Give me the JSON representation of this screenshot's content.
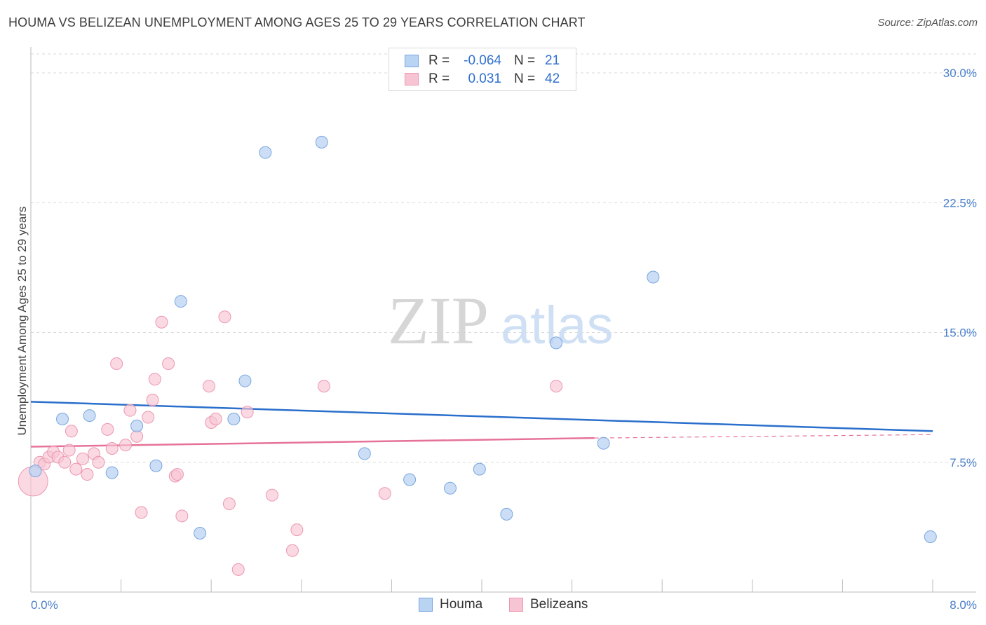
{
  "title": "HOUMA VS BELIZEAN UNEMPLOYMENT AMONG AGES 25 TO 29 YEARS CORRELATION CHART",
  "source": "Source: ZipAtlas.com",
  "watermark": {
    "zip": "ZIP",
    "atlas": "atlas"
  },
  "legend": {
    "houma": {
      "r_label": "R =",
      "r_value": "-0.064",
      "n_label": "N =",
      "n_value": "21"
    },
    "belizeans": {
      "r_label": "R =",
      "r_value": "0.031",
      "n_label": "N =",
      "n_value": "42"
    }
  },
  "bottom_legend": {
    "houma": "Houma",
    "belizeans": "Belizeans"
  },
  "colors": {
    "houma_fill": "#b9d3f3",
    "houma_stroke": "#7aa6df",
    "houma_line": "#2a6fcb",
    "belize_fill": "#f7c4d3",
    "belize_stroke": "#ec97b1",
    "belize_line": "#e6729a",
    "tick_color": "#4a7fcb",
    "grid": "#d9d9d9"
  },
  "chart_data": {
    "type": "scatter",
    "title": "HOUMA VS BELIZEAN UNEMPLOYMENT AMONG AGES 25 TO 29 YEARS CORRELATION CHART",
    "xlabel": "",
    "ylabel": "Unemployment Among Ages 25 to 29 years",
    "xlim": [
      0,
      8.0
    ],
    "ylim": [
      0,
      31.5
    ],
    "x_tick_labels": [
      "0.0%",
      "8.0%"
    ],
    "y_ticks": [
      7.5,
      15.0,
      22.5,
      30.0
    ],
    "y_tick_labels": [
      "7.5%",
      "15.0%",
      "22.5%",
      "30.0%"
    ],
    "series": [
      {
        "name": "Houma",
        "points": [
          [
            0.04,
            7.0
          ],
          [
            0.28,
            10.0
          ],
          [
            0.52,
            10.2
          ],
          [
            0.72,
            6.9
          ],
          [
            0.94,
            9.6
          ],
          [
            1.11,
            7.3
          ],
          [
            1.33,
            16.8
          ],
          [
            1.5,
            3.4
          ],
          [
            1.8,
            10.0
          ],
          [
            1.9,
            12.2
          ],
          [
            2.08,
            25.4
          ],
          [
            2.58,
            26.0
          ],
          [
            2.96,
            8.0
          ],
          [
            3.36,
            6.5
          ],
          [
            3.72,
            6.0
          ],
          [
            3.98,
            7.1
          ],
          [
            4.22,
            4.5
          ],
          [
            4.66,
            14.4
          ],
          [
            5.08,
            8.6
          ],
          [
            5.52,
            18.2
          ],
          [
            7.98,
            3.2
          ]
        ],
        "trend": {
          "x": [
            0,
            8.0
          ],
          "y": [
            11.0,
            9.3
          ]
        }
      },
      {
        "name": "Belizeans",
        "points": [
          [
            0.02,
            6.4
          ],
          [
            0.08,
            7.5
          ],
          [
            0.12,
            7.4
          ],
          [
            0.16,
            7.8
          ],
          [
            0.2,
            8.1
          ],
          [
            0.24,
            7.8
          ],
          [
            0.3,
            7.5
          ],
          [
            0.34,
            8.2
          ],
          [
            0.36,
            9.3
          ],
          [
            0.4,
            7.1
          ],
          [
            0.46,
            7.7
          ],
          [
            0.5,
            6.8
          ],
          [
            0.56,
            8.0
          ],
          [
            0.6,
            7.5
          ],
          [
            0.68,
            9.4
          ],
          [
            0.72,
            8.3
          ],
          [
            0.76,
            13.2
          ],
          [
            0.84,
            8.5
          ],
          [
            0.88,
            10.5
          ],
          [
            0.94,
            9.0
          ],
          [
            0.98,
            4.6
          ],
          [
            1.04,
            10.1
          ],
          [
            1.08,
            11.1
          ],
          [
            1.1,
            12.3
          ],
          [
            1.16,
            15.6
          ],
          [
            1.22,
            13.2
          ],
          [
            1.28,
            6.7
          ],
          [
            1.3,
            6.8
          ],
          [
            1.34,
            4.4
          ],
          [
            1.58,
            11.9
          ],
          [
            1.6,
            9.8
          ],
          [
            1.64,
            10.0
          ],
          [
            1.72,
            15.9
          ],
          [
            1.76,
            5.1
          ],
          [
            1.84,
            1.3
          ],
          [
            1.92,
            10.4
          ],
          [
            2.14,
            5.6
          ],
          [
            2.32,
            2.4
          ],
          [
            2.36,
            3.6
          ],
          [
            2.6,
            11.9
          ],
          [
            3.14,
            5.7
          ],
          [
            4.66,
            11.9
          ]
        ],
        "trend": {
          "x": [
            0,
            5.0
          ],
          "y": [
            8.4,
            8.9
          ]
        },
        "trend_dashed": {
          "x": [
            5.0,
            8.0
          ],
          "y": [
            8.9,
            9.1
          ]
        }
      }
    ]
  }
}
